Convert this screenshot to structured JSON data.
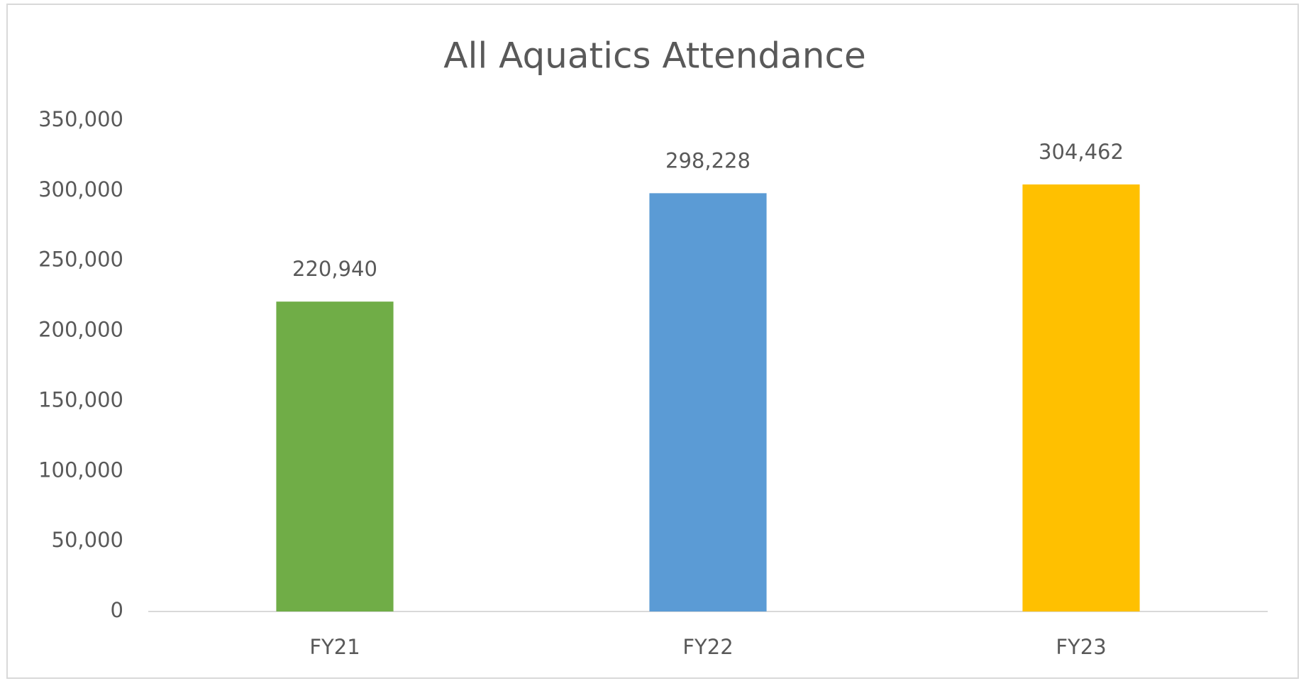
{
  "chart_data": {
    "type": "bar",
    "title": "All Aquatics Attendance",
    "categories": [
      "FY21",
      "FY22",
      "FY23"
    ],
    "values": [
      220940,
      298228,
      304462
    ],
    "value_labels": [
      "220,940",
      "298,228",
      "304,462"
    ],
    "colors": [
      "#70ad47",
      "#5b9bd5",
      "#ffc000"
    ],
    "ylim": [
      0,
      350000
    ],
    "yticks": [
      0,
      {
        "value": 50000,
        "label": "50,000"
      },
      {
        "value": 100000,
        "label": "100,000"
      },
      {
        "value": 150000,
        "label": "150,000"
      },
      {
        "value": 200000,
        "label": "200,000"
      },
      {
        "value": 250000,
        "label": "250,000"
      },
      {
        "value": 300000,
        "label": "300,000"
      },
      {
        "value": 350000,
        "label": "350,000"
      }
    ],
    "grid": false
  }
}
